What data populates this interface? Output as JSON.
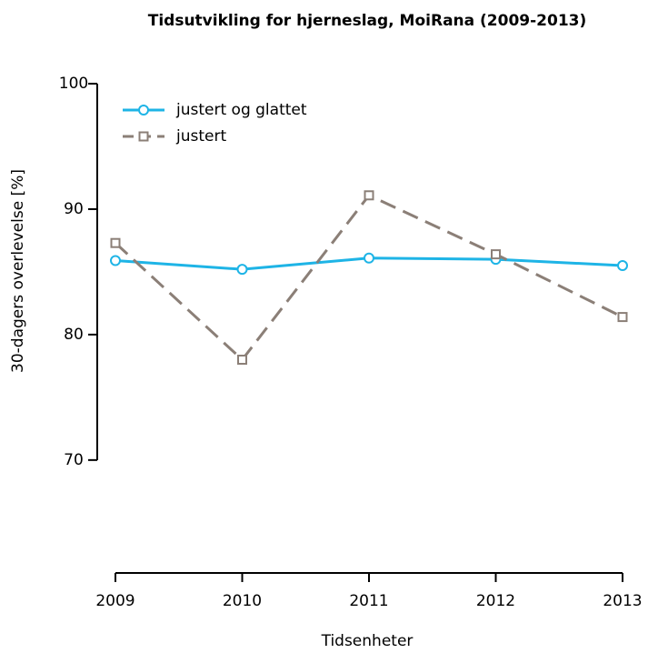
{
  "chart_data": {
    "type": "line",
    "title": "Tidsutvikling for hjerneslag, MoiRana (2009-2013)",
    "x_label": "Tidsenheter",
    "y_label": "30-dagers overlevelse [%]",
    "x": [
      2009,
      2010,
      2011,
      2012,
      2013
    ],
    "xlim": [
      2009,
      2013
    ],
    "xticks": [
      2009,
      2010,
      2011,
      2012,
      2013
    ],
    "ylim": [
      61,
      100
    ],
    "yticks": [
      70,
      80,
      90,
      100
    ],
    "legend": "top-left",
    "series": [
      {
        "name": "justert og glattet",
        "color": "#1eb4e6",
        "marker": "circle",
        "dash": false,
        "values": [
          85.9,
          85.2,
          86.1,
          86.0,
          85.5
        ]
      },
      {
        "name": "justert",
        "color": "#8b7f77",
        "marker": "square",
        "dash": true,
        "values": [
          87.3,
          78.0,
          91.1,
          86.4,
          81.4
        ]
      }
    ]
  }
}
